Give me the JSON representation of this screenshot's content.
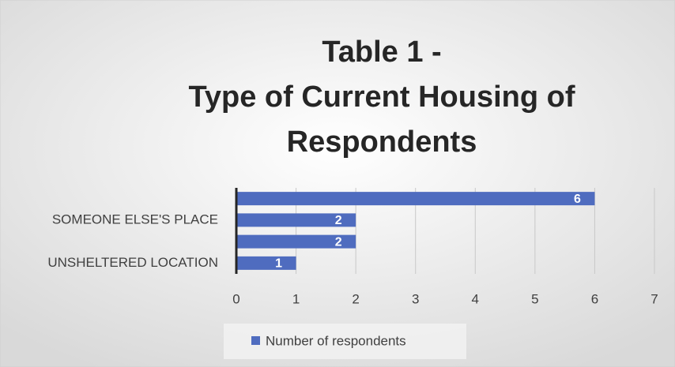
{
  "chart_data": {
    "type": "hbar",
    "title": [
      "Table 1 -",
      "Type of Current Housing of",
      "Respondents"
    ],
    "categories": [
      null,
      "SOMEONE ELSE'S PLACE",
      null,
      "UNSHELTERED LOCATION"
    ],
    "series": [
      {
        "name": "Number of respondents",
        "color": "#4f6cbf",
        "values": [
          6,
          2,
          2,
          1
        ]
      }
    ],
    "xlim": [
      0,
      7
    ],
    "xticks": [
      0,
      1,
      2,
      3,
      4,
      5,
      6,
      7
    ],
    "grid": true,
    "legend": "bottom"
  }
}
